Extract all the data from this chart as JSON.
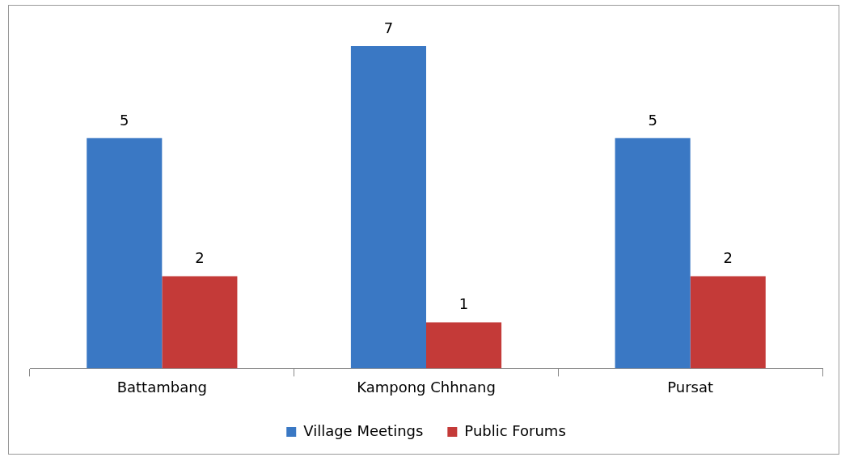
{
  "chart_data": {
    "type": "bar",
    "categories": [
      "Battambang",
      "Kampong Chhnang",
      "Pursat"
    ],
    "series": [
      {
        "name": "Village Meetings",
        "color": "#3a78c4",
        "values": [
          5,
          7,
          5
        ]
      },
      {
        "name": "Public Forums",
        "color": "#c43a38",
        "values": [
          2,
          1,
          2
        ]
      }
    ],
    "data_labels": true,
    "legend": "bottom",
    "grid": false,
    "tick_labels": "x"
  }
}
